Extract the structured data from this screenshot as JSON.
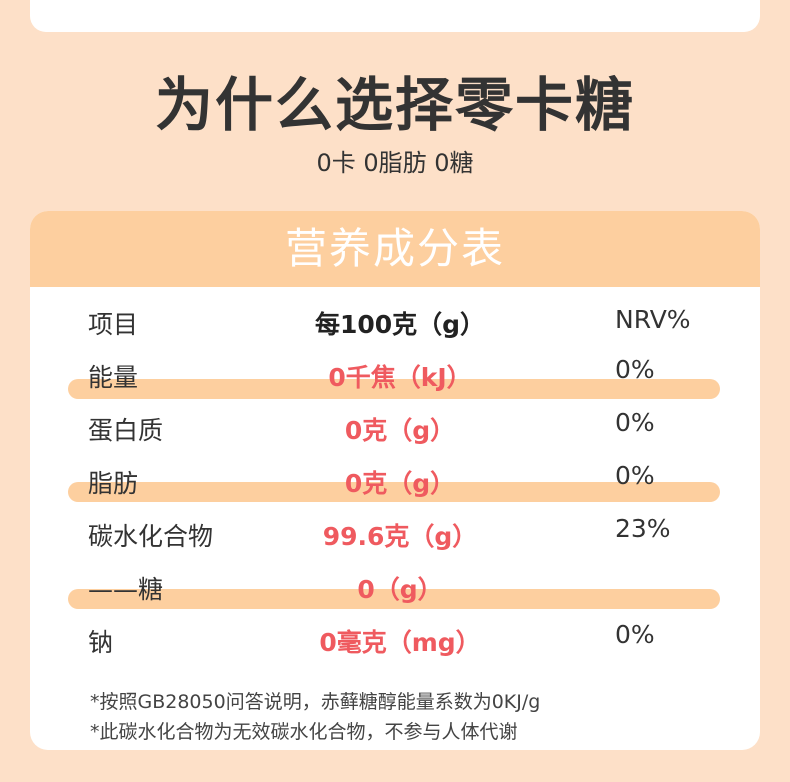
{
  "title": "为什么选择零卡糖",
  "subtitle": "0卡 0脂肪 0糖",
  "table": {
    "heading": "营养成分表",
    "columns": [
      "项目",
      "每100克（g）",
      "NRV%"
    ],
    "rows": [
      {
        "item": "能量",
        "value": "0千焦（kJ）",
        "nrv": "0%"
      },
      {
        "item": "蛋白质",
        "value": "0克（g）",
        "nrv": "0%"
      },
      {
        "item": "脂肪",
        "value": "0克（g）",
        "nrv": "0%"
      },
      {
        "item": "碳水化合物",
        "value": "99.6克（g）",
        "nrv": "23%"
      },
      {
        "item": "——糖",
        "value": "0（g）",
        "nrv": ""
      },
      {
        "item": "钠",
        "value": "0毫克（mg）",
        "nrv": "0%"
      }
    ],
    "notes": [
      "*按照GB28050问答说明，赤藓糖醇能量系数为0KJ/g",
      "*此碳水化合物为无效碳水化合物，不参与人体代谢"
    ]
  },
  "colors": {
    "background": "#fde0c8",
    "accent": "#fdcf9f",
    "value_red": "#ef5a5f"
  }
}
